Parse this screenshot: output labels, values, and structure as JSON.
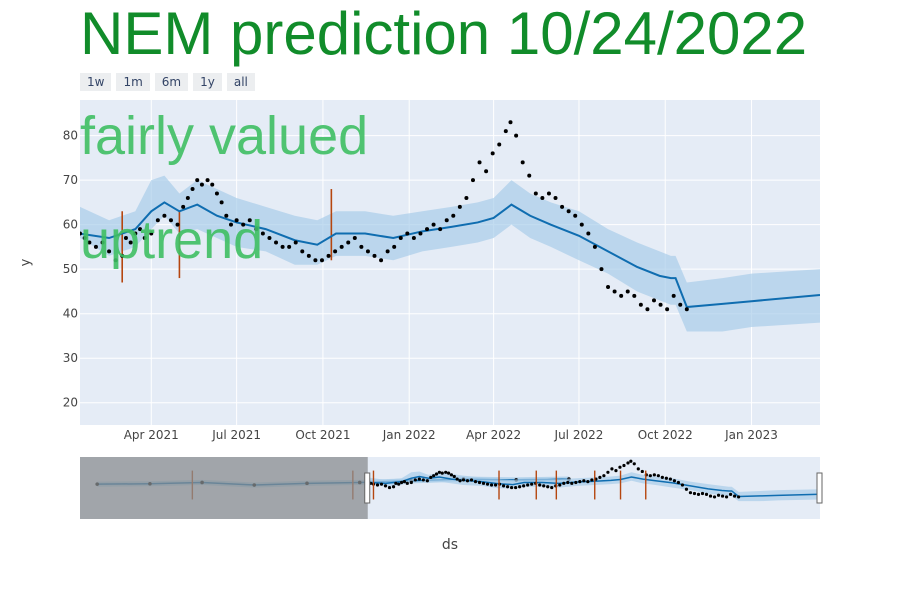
{
  "title": "NEM prediction 10/24/2022",
  "range_selector": {
    "buttons": [
      {
        "label": "1w"
      },
      {
        "label": "1m"
      },
      {
        "label": "6m"
      },
      {
        "label": "1y"
      },
      {
        "label": "all"
      }
    ]
  },
  "annotations": {
    "valuation": "fairly valued",
    "trend": "uptrend"
  },
  "colors": {
    "plot_bg": "#e5ecf6",
    "band": "#a9cde9",
    "trend_line": "#0f6db0",
    "points": "#000000",
    "changepoints": "#b5460f",
    "rangeslider_mask": "#8a8d90",
    "overlay_text": "#3fbf63",
    "title": "#118c2a"
  },
  "chart_data": {
    "type": "line",
    "title": "NEM prediction 10/24/2022",
    "xlabel": "ds",
    "ylabel": "y",
    "xlim": [
      "2021-01-15",
      "2023-03-15"
    ],
    "ylim": [
      15,
      88
    ],
    "x_ticks": [
      {
        "date": "2021-04-01",
        "label": "Apr 2021"
      },
      {
        "date": "2021-07-01",
        "label": "Jul 2021"
      },
      {
        "date": "2021-10-01",
        "label": "Oct 2021"
      },
      {
        "date": "2022-01-01",
        "label": "Jan 2022"
      },
      {
        "date": "2022-04-01",
        "label": "Apr 2022"
      },
      {
        "date": "2022-07-01",
        "label": "Jul 2022"
      },
      {
        "date": "2022-10-01",
        "label": "Oct 2022"
      },
      {
        "date": "2023-01-01",
        "label": "Jan 2023"
      }
    ],
    "y_ticks": [
      20,
      30,
      40,
      50,
      60,
      70,
      80
    ],
    "grid": true,
    "series": [
      {
        "role": "actual",
        "points": [
          [
            "2021-01-15",
            58
          ],
          [
            "2021-01-20",
            57
          ],
          [
            "2021-01-25",
            56
          ],
          [
            "2021-02-01",
            55
          ],
          [
            "2021-02-08",
            56
          ],
          [
            "2021-02-15",
            54
          ],
          [
            "2021-02-22",
            52
          ],
          [
            "2021-03-01",
            53
          ],
          [
            "2021-03-05",
            57
          ],
          [
            "2021-03-10",
            56
          ],
          [
            "2021-03-15",
            58
          ],
          [
            "2021-03-20",
            59
          ],
          [
            "2021-03-25",
            57
          ],
          [
            "2021-04-01",
            58
          ],
          [
            "2021-04-08",
            61
          ],
          [
            "2021-04-15",
            62
          ],
          [
            "2021-04-22",
            61
          ],
          [
            "2021-04-29",
            60
          ],
          [
            "2021-05-05",
            64
          ],
          [
            "2021-05-10",
            66
          ],
          [
            "2021-05-15",
            68
          ],
          [
            "2021-05-20",
            70
          ],
          [
            "2021-05-25",
            69
          ],
          [
            "2021-05-31",
            70
          ],
          [
            "2021-06-05",
            69
          ],
          [
            "2021-06-10",
            67
          ],
          [
            "2021-06-15",
            65
          ],
          [
            "2021-06-20",
            62
          ],
          [
            "2021-06-25",
            60
          ],
          [
            "2021-07-01",
            61
          ],
          [
            "2021-07-08",
            60
          ],
          [
            "2021-07-15",
            61
          ],
          [
            "2021-07-22",
            59
          ],
          [
            "2021-07-29",
            58
          ],
          [
            "2021-08-05",
            57
          ],
          [
            "2021-08-12",
            56
          ],
          [
            "2021-08-19",
            55
          ],
          [
            "2021-08-26",
            55
          ],
          [
            "2021-09-02",
            56
          ],
          [
            "2021-09-09",
            54
          ],
          [
            "2021-09-16",
            53
          ],
          [
            "2021-09-23",
            52
          ],
          [
            "2021-09-30",
            52
          ],
          [
            "2021-10-07",
            53
          ],
          [
            "2021-10-14",
            54
          ],
          [
            "2021-10-21",
            55
          ],
          [
            "2021-10-28",
            56
          ],
          [
            "2021-11-04",
            57
          ],
          [
            "2021-11-11",
            55
          ],
          [
            "2021-11-18",
            54
          ],
          [
            "2021-11-25",
            53
          ],
          [
            "2021-12-02",
            52
          ],
          [
            "2021-12-09",
            54
          ],
          [
            "2021-12-16",
            55
          ],
          [
            "2021-12-23",
            57
          ],
          [
            "2021-12-30",
            58
          ],
          [
            "2022-01-06",
            57
          ],
          [
            "2022-01-13",
            58
          ],
          [
            "2022-01-20",
            59
          ],
          [
            "2022-01-27",
            60
          ],
          [
            "2022-02-03",
            59
          ],
          [
            "2022-02-10",
            61
          ],
          [
            "2022-02-17",
            62
          ],
          [
            "2022-02-24",
            64
          ],
          [
            "2022-03-03",
            66
          ],
          [
            "2022-03-10",
            70
          ],
          [
            "2022-03-17",
            74
          ],
          [
            "2022-03-24",
            72
          ],
          [
            "2022-03-31",
            76
          ],
          [
            "2022-04-07",
            78
          ],
          [
            "2022-04-14",
            81
          ],
          [
            "2022-04-19",
            83
          ],
          [
            "2022-04-25",
            80
          ],
          [
            "2022-05-02",
            74
          ],
          [
            "2022-05-09",
            71
          ],
          [
            "2022-05-16",
            67
          ],
          [
            "2022-05-23",
            66
          ],
          [
            "2022-05-30",
            67
          ],
          [
            "2022-06-06",
            66
          ],
          [
            "2022-06-13",
            64
          ],
          [
            "2022-06-20",
            63
          ],
          [
            "2022-06-27",
            62
          ],
          [
            "2022-07-04",
            60
          ],
          [
            "2022-07-11",
            58
          ],
          [
            "2022-07-18",
            55
          ],
          [
            "2022-07-25",
            50
          ],
          [
            "2022-08-01",
            46
          ],
          [
            "2022-08-08",
            45
          ],
          [
            "2022-08-15",
            44
          ],
          [
            "2022-08-22",
            45
          ],
          [
            "2022-08-29",
            44
          ],
          [
            "2022-09-05",
            42
          ],
          [
            "2022-09-12",
            41
          ],
          [
            "2022-09-19",
            43
          ],
          [
            "2022-09-26",
            42
          ],
          [
            "2022-10-03",
            41
          ],
          [
            "2022-10-10",
            44
          ],
          [
            "2022-10-17",
            42
          ],
          [
            "2022-10-24",
            41
          ]
        ]
      },
      {
        "role": "trend",
        "points": [
          [
            "2021-01-15",
            58
          ],
          [
            "2021-02-15",
            57
          ],
          [
            "2021-03-15",
            59
          ],
          [
            "2021-04-01",
            63
          ],
          [
            "2021-04-15",
            65
          ],
          [
            "2021-05-01",
            63
          ],
          [
            "2021-05-20",
            64.5
          ],
          [
            "2021-06-10",
            62
          ],
          [
            "2021-07-01",
            60.5
          ],
          [
            "2021-08-01",
            59
          ],
          [
            "2021-09-01",
            56.5
          ],
          [
            "2021-09-25",
            55.5
          ],
          [
            "2021-10-15",
            58
          ],
          [
            "2021-11-15",
            58
          ],
          [
            "2021-12-15",
            57
          ],
          [
            "2022-01-15",
            58.5
          ],
          [
            "2022-02-15",
            59.5
          ],
          [
            "2022-03-15",
            60.5
          ],
          [
            "2022-04-01",
            61.5
          ],
          [
            "2022-04-20",
            64.5
          ],
          [
            "2022-05-10",
            62
          ],
          [
            "2022-06-01",
            60
          ],
          [
            "2022-07-01",
            57.5
          ],
          [
            "2022-08-01",
            54
          ],
          [
            "2022-09-01",
            50.5
          ],
          [
            "2022-09-25",
            48.5
          ],
          [
            "2022-10-07",
            48
          ],
          [
            "2022-10-12",
            48
          ],
          [
            "2022-10-24",
            41.5
          ],
          [
            "2022-12-01",
            42.2
          ],
          [
            "2023-01-01",
            42.8
          ],
          [
            "2023-03-15",
            44.2
          ]
        ]
      },
      {
        "role": "uncertainty",
        "points": [
          [
            "2021-01-15",
            57,
            64
          ],
          [
            "2021-02-15",
            53,
            61
          ],
          [
            "2021-03-15",
            55,
            63
          ],
          [
            "2021-04-01",
            59,
            70
          ],
          [
            "2021-04-15",
            62,
            71
          ],
          [
            "2021-05-01",
            58,
            67
          ],
          [
            "2021-05-20",
            59,
            70
          ],
          [
            "2021-06-10",
            57,
            68
          ],
          [
            "2021-07-01",
            55,
            66
          ],
          [
            "2021-08-01",
            54,
            64
          ],
          [
            "2021-09-01",
            51,
            62
          ],
          [
            "2021-09-25",
            51,
            61
          ],
          [
            "2021-10-15",
            53,
            63
          ],
          [
            "2021-11-15",
            53,
            63
          ],
          [
            "2021-12-15",
            52,
            62
          ],
          [
            "2022-01-15",
            54,
            63
          ],
          [
            "2022-02-15",
            55,
            64
          ],
          [
            "2022-03-15",
            56,
            65
          ],
          [
            "2022-04-01",
            57,
            66
          ],
          [
            "2022-04-20",
            60,
            70
          ],
          [
            "2022-05-10",
            57,
            67
          ],
          [
            "2022-06-01",
            55,
            65
          ],
          [
            "2022-07-01",
            52,
            63
          ],
          [
            "2022-08-01",
            49,
            59
          ],
          [
            "2022-09-01",
            45,
            56
          ],
          [
            "2022-09-25",
            43,
            54
          ],
          [
            "2022-10-07",
            42,
            53
          ],
          [
            "2022-10-12",
            42,
            53
          ],
          [
            "2022-10-24",
            36,
            47
          ],
          [
            "2022-12-01",
            36,
            48
          ],
          [
            "2023-01-01",
            37,
            49
          ],
          [
            "2023-03-15",
            38,
            50
          ]
        ]
      }
    ],
    "changepoints": [
      {
        "x": "2021-03-01",
        "y_low": 47,
        "y_high": 63
      },
      {
        "x": "2021-05-01",
        "y_low": 48,
        "y_high": 63
      },
      {
        "x": "2021-10-10",
        "y_low": 52,
        "y_high": 68
      }
    ],
    "rangeslider": {
      "xlim": [
        "2019-09-01",
        "2023-03-15"
      ],
      "window": [
        "2021-01-15",
        "2023-03-15"
      ],
      "changepoints": [
        "2020-03-15",
        "2020-12-20",
        "2021-01-25",
        "2021-09-01",
        "2021-11-05",
        "2021-12-10",
        "2022-02-15",
        "2022-04-01",
        "2022-05-15"
      ]
    }
  }
}
